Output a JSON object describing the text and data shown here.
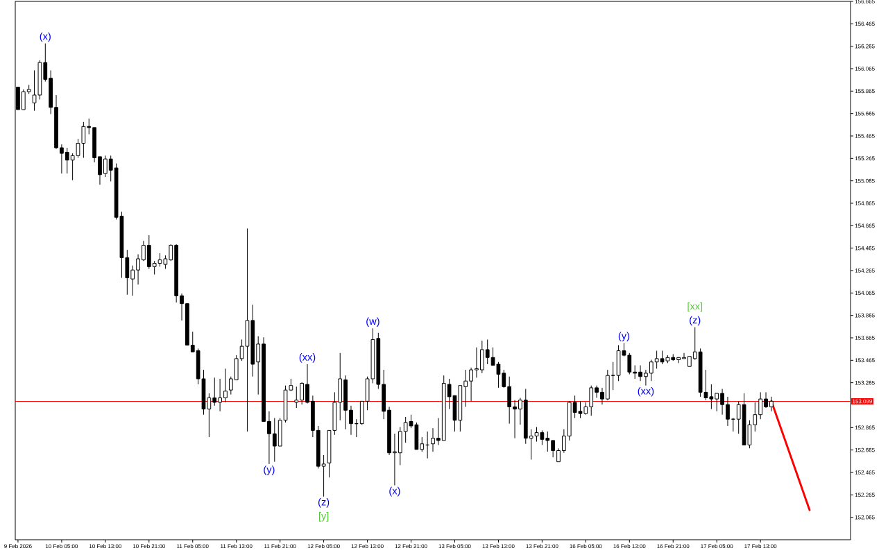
{
  "chart_data": {
    "type": "candlestick",
    "categories": [
      "9 Feb 2026",
      null,
      null,
      null,
      null,
      null,
      null,
      null,
      "10 Feb 05:00",
      null,
      null,
      null,
      null,
      null,
      null,
      null,
      "10 Feb 13:00",
      null,
      null,
      null,
      null,
      null,
      null,
      null,
      "10 Feb 21:00",
      null,
      null,
      null,
      null,
      null,
      null,
      null,
      "11 Feb 05:00",
      null,
      null,
      null,
      null,
      null,
      null,
      null,
      "11 Feb 13:00",
      null,
      null,
      null,
      null,
      null,
      null,
      null,
      "11 Feb 21:00",
      null,
      null,
      null,
      null,
      null,
      null,
      null,
      "12 Feb 05:00",
      null,
      null,
      null,
      null,
      null,
      null,
      null,
      "12 Feb 13:00",
      null,
      null,
      null,
      null,
      null,
      null,
      null,
      "12 Feb 21:00",
      null,
      null,
      null,
      null,
      null,
      null,
      null,
      "13 Feb 05:00",
      null,
      null,
      null,
      null,
      null,
      null,
      null,
      "13 Feb 13:00",
      null,
      null,
      null,
      null,
      null,
      null,
      null,
      "13 Feb 21:00",
      null,
      null,
      null,
      null,
      null,
      null,
      null,
      "16 Feb 05:00",
      null,
      null,
      null,
      null,
      null,
      null,
      null,
      "16 Feb 13:00",
      null,
      null,
      null,
      null,
      null,
      null,
      null,
      "16 Feb 21:00",
      null,
      null,
      null,
      null,
      null,
      null,
      null,
      "17 Feb 05:00",
      null,
      null,
      null,
      null,
      null,
      null,
      null,
      "17 Feb 13:00",
      null,
      null,
      null,
      null,
      null,
      null,
      null,
      null,
      null,
      null,
      null,
      null,
      null,
      null,
      null,
      null
    ],
    "ohlc": [
      [
        155.9,
        155.9,
        155.7,
        155.7
      ],
      [
        155.7,
        155.88,
        155.7,
        155.86
      ],
      [
        155.86,
        155.92,
        155.84,
        155.88
      ],
      [
        155.76,
        156.05,
        155.69,
        155.83
      ],
      [
        155.83,
        156.14,
        155.79,
        156.12
      ],
      [
        156.12,
        156.29,
        155.95,
        155.97
      ],
      [
        155.98,
        156.05,
        155.66,
        155.72
      ],
      [
        155.72,
        155.83,
        155.35,
        155.36
      ],
      [
        155.36,
        155.39,
        155.13,
        155.31
      ],
      [
        155.32,
        155.36,
        155.13,
        155.25
      ],
      [
        155.25,
        155.31,
        155.07,
        155.29
      ],
      [
        155.29,
        155.44,
        155.27,
        155.4
      ],
      [
        155.4,
        155.59,
        155.27,
        155.55
      ],
      [
        155.55,
        155.62,
        155.48,
        155.54
      ],
      [
        155.54,
        155.54,
        155.23,
        155.27
      ],
      [
        155.28,
        155.28,
        155.03,
        155.12
      ],
      [
        155.13,
        155.29,
        155.1,
        155.26
      ],
      [
        155.26,
        155.29,
        155.06,
        155.16
      ],
      [
        155.18,
        155.22,
        154.72,
        154.74
      ],
      [
        154.75,
        154.79,
        154.2,
        154.38
      ],
      [
        154.38,
        154.45,
        154.05,
        154.2
      ],
      [
        154.19,
        154.31,
        154.04,
        154.27
      ],
      [
        154.27,
        154.41,
        154.14,
        154.37
      ],
      [
        154.36,
        154.53,
        154.35,
        154.49
      ],
      [
        154.49,
        154.58,
        154.28,
        154.3
      ],
      [
        154.3,
        154.35,
        154.23,
        154.33
      ],
      [
        154.33,
        154.42,
        154.3,
        154.36
      ],
      [
        154.32,
        154.4,
        154.28,
        154.37
      ],
      [
        154.36,
        154.5,
        154.35,
        154.49
      ],
      [
        154.49,
        154.5,
        153.98,
        154.04
      ],
      [
        154.04,
        154.06,
        153.82,
        153.97
      ],
      [
        153.97,
        153.97,
        153.6,
        153.6
      ],
      [
        153.6,
        153.72,
        153.54,
        153.54
      ],
      [
        153.55,
        153.57,
        153.25,
        153.3
      ],
      [
        153.3,
        153.38,
        152.98,
        153.03
      ],
      [
        153.03,
        153.17,
        152.78,
        153.13
      ],
      [
        153.13,
        153.31,
        153.06,
        153.09
      ],
      [
        153.09,
        153.3,
        153.01,
        153.13
      ],
      [
        153.13,
        153.39,
        153.09,
        153.19
      ],
      [
        153.2,
        153.32,
        153.16,
        153.3
      ],
      [
        153.29,
        153.51,
        153.29,
        153.48
      ],
      [
        153.48,
        153.65,
        153.46,
        153.59
      ],
      [
        153.59,
        154.64,
        152.83,
        153.82
      ],
      [
        153.82,
        153.96,
        153.32,
        153.43
      ],
      [
        153.45,
        153.68,
        153.16,
        153.61
      ],
      [
        153.61,
        153.67,
        152.92,
        152.92
      ],
      [
        152.92,
        153.01,
        152.54,
        152.81
      ],
      [
        152.81,
        152.95,
        152.56,
        152.7
      ],
      [
        152.7,
        152.95,
        152.7,
        152.93
      ],
      [
        152.93,
        153.24,
        152.91,
        153.2
      ],
      [
        153.2,
        153.3,
        153.19,
        153.24
      ],
      [
        153.09,
        153.23,
        153.04,
        153.11
      ],
      [
        153.11,
        153.27,
        153.07,
        153.26
      ],
      [
        153.25,
        153.43,
        153.08,
        153.09
      ],
      [
        153.1,
        153.15,
        152.78,
        152.84
      ],
      [
        152.84,
        152.88,
        152.5,
        152.52
      ],
      [
        152.52,
        152.62,
        152.25,
        152.54
      ],
      [
        152.55,
        152.84,
        152.42,
        152.84
      ],
      [
        152.84,
        153.18,
        152.8,
        153.09
      ],
      [
        153.09,
        153.53,
        152.93,
        153.3
      ],
      [
        153.29,
        153.33,
        152.85,
        153.02
      ],
      [
        153.02,
        153.06,
        152.8,
        152.9
      ],
      [
        152.9,
        152.94,
        152.78,
        152.9
      ],
      [
        152.9,
        153.1,
        152.89,
        153.1
      ],
      [
        153.1,
        153.32,
        153.02,
        153.3
      ],
      [
        153.3,
        153.75,
        153.26,
        153.65
      ],
      [
        153.66,
        153.71,
        153.21,
        153.25
      ],
      [
        153.25,
        153.38,
        152.94,
        153.01
      ],
      [
        153.02,
        153.05,
        152.62,
        152.64
      ],
      [
        152.64,
        152.81,
        152.35,
        152.65
      ],
      [
        152.64,
        152.87,
        152.53,
        152.83
      ],
      [
        152.83,
        152.96,
        152.73,
        152.91
      ],
      [
        152.92,
        152.98,
        152.86,
        152.88
      ],
      [
        152.89,
        152.91,
        152.67,
        152.67
      ],
      [
        152.67,
        152.78,
        152.65,
        152.72
      ],
      [
        152.71,
        152.83,
        152.59,
        152.71
      ],
      [
        152.72,
        152.86,
        152.65,
        152.77
      ],
      [
        152.77,
        152.95,
        152.71,
        152.75
      ],
      [
        152.75,
        153.33,
        152.75,
        153.26
      ],
      [
        153.25,
        153.3,
        153.03,
        153.14
      ],
      [
        153.15,
        153.15,
        152.83,
        152.93
      ],
      [
        152.93,
        153.24,
        152.83,
        153.24
      ],
      [
        153.23,
        153.38,
        153.05,
        153.28
      ],
      [
        153.28,
        153.4,
        153.1,
        153.38
      ],
      [
        153.38,
        153.58,
        153.31,
        153.39
      ],
      [
        153.38,
        153.64,
        153.35,
        153.56
      ],
      [
        153.56,
        153.65,
        153.43,
        153.49
      ],
      [
        153.49,
        153.58,
        153.42,
        153.42
      ],
      [
        153.43,
        153.45,
        153.22,
        153.34
      ],
      [
        153.35,
        153.38,
        153.22,
        153.23
      ],
      [
        153.23,
        153.32,
        152.9,
        153.05
      ],
      [
        153.05,
        153.11,
        152.77,
        153.03
      ],
      [
        153.03,
        153.13,
        152.89,
        153.11
      ],
      [
        153.11,
        153.21,
        152.72,
        152.77
      ],
      [
        152.77,
        152.85,
        152.58,
        152.79
      ],
      [
        152.79,
        152.87,
        152.74,
        152.82
      ],
      [
        152.82,
        152.84,
        152.71,
        152.76
      ],
      [
        152.77,
        152.83,
        152.65,
        152.75
      ],
      [
        152.75,
        152.75,
        152.6,
        152.66
      ],
      [
        152.56,
        152.68,
        152.56,
        152.66
      ],
      [
        152.66,
        152.85,
        152.64,
        152.79
      ],
      [
        152.79,
        153.1,
        152.75,
        153.09
      ],
      [
        153.09,
        153.15,
        152.95,
        153.0
      ],
      [
        153.01,
        153.1,
        152.95,
        152.99
      ],
      [
        152.99,
        153.09,
        152.98,
        153.05
      ],
      [
        153.05,
        153.24,
        152.97,
        153.22
      ],
      [
        153.22,
        153.24,
        153.13,
        153.18
      ],
      [
        153.18,
        153.22,
        153.07,
        153.12
      ],
      [
        153.12,
        153.38,
        153.11,
        153.33
      ],
      [
        153.33,
        153.45,
        153.2,
        153.33
      ],
      [
        153.33,
        153.6,
        153.28,
        153.55
      ],
      [
        153.55,
        153.62,
        153.5,
        153.51
      ],
      [
        153.51,
        153.53,
        153.34,
        153.36
      ],
      [
        153.36,
        153.42,
        153.3,
        153.35
      ],
      [
        153.36,
        153.42,
        153.28,
        153.32
      ],
      [
        153.32,
        153.38,
        153.24,
        153.35
      ],
      [
        153.35,
        153.47,
        153.28,
        153.45
      ],
      [
        153.45,
        153.55,
        153.39,
        153.48
      ],
      [
        153.48,
        153.55,
        153.43,
        153.45
      ],
      [
        153.46,
        153.51,
        153.44,
        153.49
      ],
      [
        153.49,
        153.52,
        153.46,
        153.47
      ],
      [
        153.47,
        153.49,
        153.44,
        153.49
      ],
      [
        153.48,
        153.53,
        153.48,
        153.49
      ],
      [
        153.41,
        153.5,
        153.41,
        153.5
      ],
      [
        153.48,
        153.76,
        153.47,
        153.54
      ],
      [
        153.54,
        153.57,
        153.14,
        153.18
      ],
      [
        153.18,
        153.38,
        153.11,
        153.13
      ],
      [
        153.14,
        153.25,
        153.03,
        153.12
      ],
      [
        153.12,
        153.17,
        153.01,
        153.17
      ],
      [
        153.17,
        153.21,
        152.98,
        153.07
      ],
      [
        153.07,
        153.14,
        152.88,
        152.94
      ],
      [
        152.94,
        152.95,
        152.83,
        152.94
      ],
      [
        152.94,
        153.1,
        152.81,
        153.07
      ],
      [
        153.07,
        153.17,
        152.71,
        152.71
      ],
      [
        152.71,
        152.93,
        152.68,
        152.89
      ],
      [
        152.89,
        153.09,
        152.83,
        152.98
      ],
      [
        152.98,
        153.18,
        152.94,
        153.12
      ],
      [
        153.12,
        153.18,
        153.04,
        153.05
      ],
      [
        153.05,
        153.14,
        153.01,
        153.1
      ],
      null,
      null,
      null,
      null,
      null,
      null,
      null,
      null,
      null,
      null,
      null,
      null,
      null,
      null
    ],
    "series": [
      {
        "type": "line",
        "color": "#ff0000",
        "values": [
          null,
          null,
          null,
          null,
          null,
          null,
          null,
          null,
          null,
          null,
          null,
          null,
          null,
          null,
          null,
          null,
          null,
          null,
          null,
          null,
          null,
          null,
          null,
          null,
          null,
          null,
          null,
          null,
          null,
          null,
          null,
          null,
          null,
          null,
          null,
          null,
          null,
          null,
          null,
          null,
          null,
          null,
          null,
          null,
          null,
          null,
          null,
          null,
          null,
          null,
          null,
          null,
          null,
          null,
          null,
          null,
          null,
          null,
          null,
          null,
          null,
          null,
          null,
          null,
          null,
          null,
          null,
          null,
          null,
          null,
          null,
          null,
          null,
          null,
          null,
          null,
          null,
          null,
          null,
          null,
          null,
          null,
          null,
          null,
          null,
          null,
          null,
          null,
          null,
          null,
          null,
          null,
          null,
          null,
          null,
          null,
          null,
          null,
          null,
          null,
          null,
          null,
          null,
          null,
          null,
          null,
          null,
          null,
          null,
          null,
          null,
          null,
          null,
          null,
          null,
          null,
          null,
          null,
          null,
          null,
          null,
          null,
          null,
          null,
          null,
          null,
          null,
          null,
          null,
          null,
          null,
          null,
          null,
          null,
          null,
          null,
          null,
          null,
          153.1,
          null,
          null,
          null,
          null,
          null,
          null,
          152.13,
          null,
          null,
          null,
          null,
          null,
          null,
          null
        ]
      }
    ],
    "ylim": [
      151.865,
      156.665
    ],
    "yticks": [
      156.665,
      156.465,
      156.265,
      156.065,
      155.865,
      155.665,
      155.465,
      155.265,
      155.065,
      154.865,
      154.665,
      154.465,
      154.265,
      154.065,
      153.865,
      153.665,
      153.465,
      153.265,
      152.865,
      152.665,
      152.465,
      152.265,
      152.065
    ],
    "ref_lines": [
      {
        "axis": "y",
        "value": 153.099,
        "label": "153.099",
        "color": "#ff0000"
      }
    ],
    "annotations": [
      {
        "text": "(x)",
        "y": 156.29
      },
      {
        "text": "(y)",
        "y": 152.54
      },
      {
        "text": "(xx)",
        "y": 153.43
      },
      {
        "text": "(z)",
        "y": 152.25
      },
      {
        "text": "[y]",
        "y": 152.25
      },
      {
        "text": "(w)",
        "y": 153.75
      },
      {
        "text": "(x)",
        "y": 152.35
      },
      {
        "text": "(y)",
        "y": 153.62
      },
      {
        "text": "(xx)",
        "y": 153.24
      },
      {
        "text": "(z)",
        "y": 153.76
      },
      {
        "text": "[xx]",
        "y": 153.76
      }
    ]
  }
}
